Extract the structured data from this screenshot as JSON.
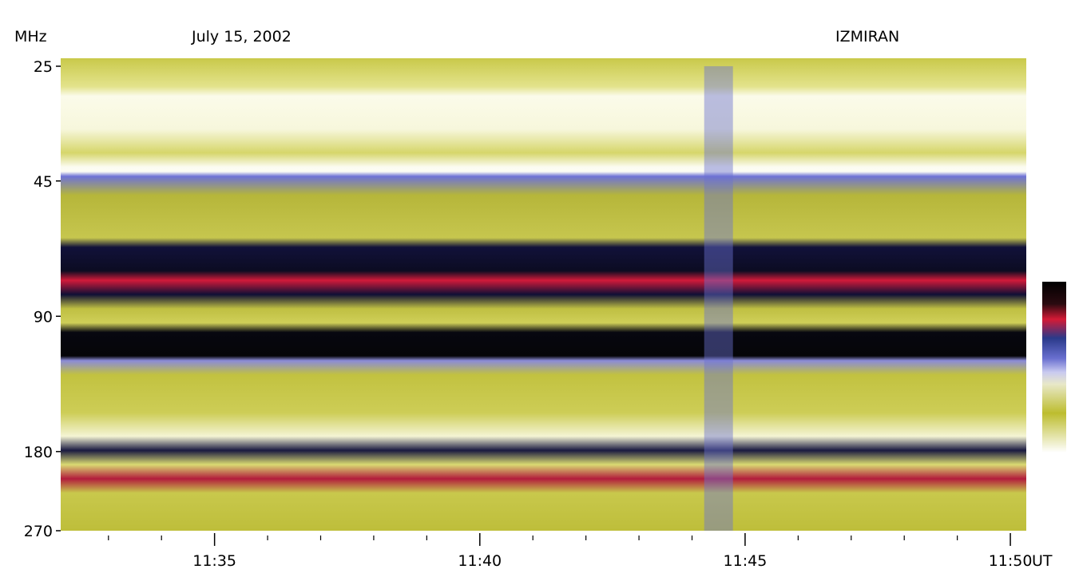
{
  "header": {
    "unit": "MHz",
    "date": "July 15, 2002",
    "station": "IZMIRAN",
    "time_unit": "UT"
  },
  "chart_data": {
    "type": "heatmap",
    "title": "July 15, 2002",
    "source_label": "IZMIRAN",
    "ylabel": "MHz",
    "xlabel": "UT",
    "y_scale": "log",
    "y_ticks": [
      "25",
      "45",
      "90",
      "180",
      "270"
    ],
    "y_tick_values": [
      25,
      45,
      90,
      180,
      270
    ],
    "ylim": [
      24,
      270
    ],
    "x_tick_labels": [
      "11:35",
      "11:40",
      "11:45",
      "11:50"
    ],
    "x_tick_minutes": [
      35,
      40,
      45,
      50
    ],
    "xlim_minutes": [
      32.1,
      50.3
    ],
    "x_minor_step_minutes": 1,
    "events": [
      {
        "name": "burst",
        "time_minutes": 44.5,
        "freq_range_mhz": [
          25,
          270
        ]
      }
    ],
    "colors": {
      "low": "#ffffff",
      "mid_low": "#bdbd2e",
      "mid": "#6a70d0",
      "mid_high": "#d41a36",
      "high": "#000000"
    }
  }
}
